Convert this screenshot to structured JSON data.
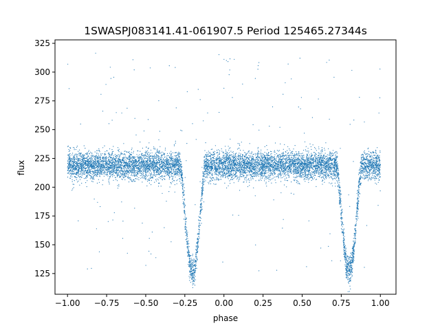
{
  "chart_data": {
    "type": "scatter",
    "title": "1SWASPJ083141.41-061907.5 Period 125465.27344s",
    "xlabel": "phase",
    "ylabel": "flux",
    "xlim": [
      -1.08,
      1.1
    ],
    "ylim": [
      107,
      328
    ],
    "xticks": [
      -1.0,
      -0.75,
      -0.5,
      -0.25,
      0.0,
      0.25,
      0.5,
      0.75,
      1.0
    ],
    "xtick_labels": [
      "−1.00",
      "−0.75",
      "−0.50",
      "−0.25",
      "0.00",
      "0.25",
      "0.50",
      "0.75",
      "1.00"
    ],
    "yticks": [
      125,
      150,
      175,
      200,
      225,
      250,
      275,
      300,
      325
    ],
    "ytick_labels": [
      "125",
      "150",
      "175",
      "200",
      "225",
      "250",
      "275",
      "300",
      "325"
    ],
    "grid": false,
    "point_color": "#1f77b4",
    "series": [
      {
        "phase_range": [
          -1.0,
          1.0
        ],
        "baseline_flux": 219,
        "scatter": 6,
        "eclipse_centers": [
          -0.2,
          0.8
        ],
        "eclipse_half_width": 0.08,
        "eclipse_min_flux": 127,
        "approx_point_count": 9000
      }
    ]
  }
}
